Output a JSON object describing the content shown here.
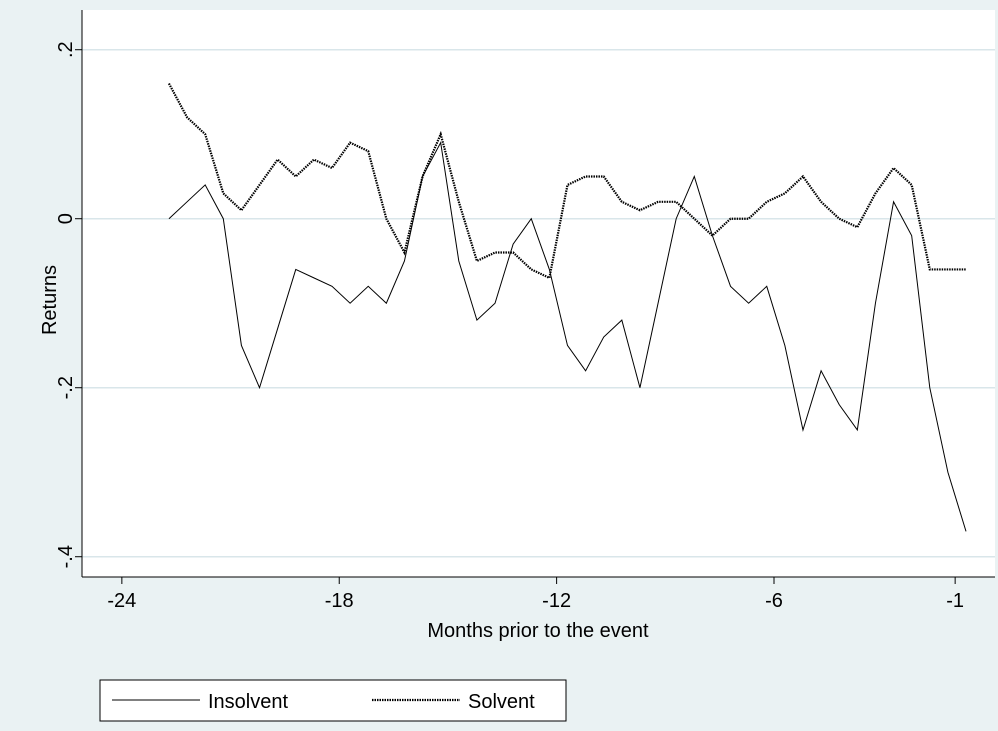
{
  "chart_data": {
    "type": "line",
    "ylabel": "Returns",
    "xlabel": "Months prior to the event",
    "x": [
      -22.7,
      -22.2,
      -21.7,
      -21.2,
      -20.7,
      -20.2,
      -19.7,
      -19.2,
      -18.7,
      -18.2,
      -17.7,
      -17.2,
      -16.7,
      -16.2,
      -15.7,
      -15.2,
      -14.7,
      -14.2,
      -13.7,
      -13.2,
      -12.7,
      -12.2,
      -11.7,
      -11.2,
      -10.7,
      -10.2,
      -9.7,
      -9.2,
      -8.7,
      -8.2,
      -7.7,
      -7.2,
      -6.7,
      -6.2,
      -5.7,
      -5.2,
      -4.7,
      -4.2,
      -3.7,
      -3.2,
      -2.7,
      -2.2,
      -1.7,
      -1.2,
      -0.7
    ],
    "series": [
      {
        "name": "Insolvent",
        "color": "#000000",
        "style": "solid",
        "values": [
          0.0,
          0.02,
          0.04,
          0.0,
          -0.15,
          -0.2,
          -0.13,
          -0.06,
          -0.07,
          -0.08,
          -0.1,
          -0.08,
          -0.1,
          -0.05,
          0.05,
          0.09,
          -0.05,
          -0.12,
          -0.1,
          -0.03,
          0.0,
          -0.06,
          -0.15,
          -0.18,
          -0.14,
          -0.12,
          -0.2,
          -0.1,
          0.0,
          0.05,
          -0.02,
          -0.08,
          -0.1,
          -0.08,
          -0.15,
          -0.25,
          -0.18,
          -0.22,
          -0.25,
          -0.1,
          0.02,
          -0.02,
          -0.2,
          -0.3,
          -0.37
        ]
      },
      {
        "name": "Solvent",
        "color": "#000000",
        "style": "dotted",
        "values": [
          0.16,
          0.12,
          0.1,
          0.03,
          0.01,
          0.04,
          0.07,
          0.05,
          0.07,
          0.06,
          0.09,
          0.08,
          0.0,
          -0.04,
          0.05,
          0.1,
          0.02,
          -0.05,
          -0.04,
          -0.04,
          -0.06,
          -0.07,
          0.04,
          0.05,
          0.05,
          0.02,
          0.01,
          0.02,
          0.02,
          0.0,
          -0.02,
          0.0,
          0.0,
          0.02,
          0.03,
          0.05,
          0.02,
          0.0,
          -0.01,
          0.03,
          0.06,
          0.04,
          -0.06,
          -0.06,
          -0.06
        ]
      }
    ],
    "xlim": [
      -25.1,
      0.1
    ],
    "xticks": [
      -24,
      -18,
      -12,
      -6,
      -1
    ],
    "ylim": [
      -0.424,
      0.247
    ],
    "yticks": [
      {
        "value": 0.2,
        "label": ".2"
      },
      0,
      {
        "value": -0.2,
        "label": "-.2"
      },
      {
        "value": -0.4,
        "label": "-.4"
      }
    ],
    "grid": true
  }
}
